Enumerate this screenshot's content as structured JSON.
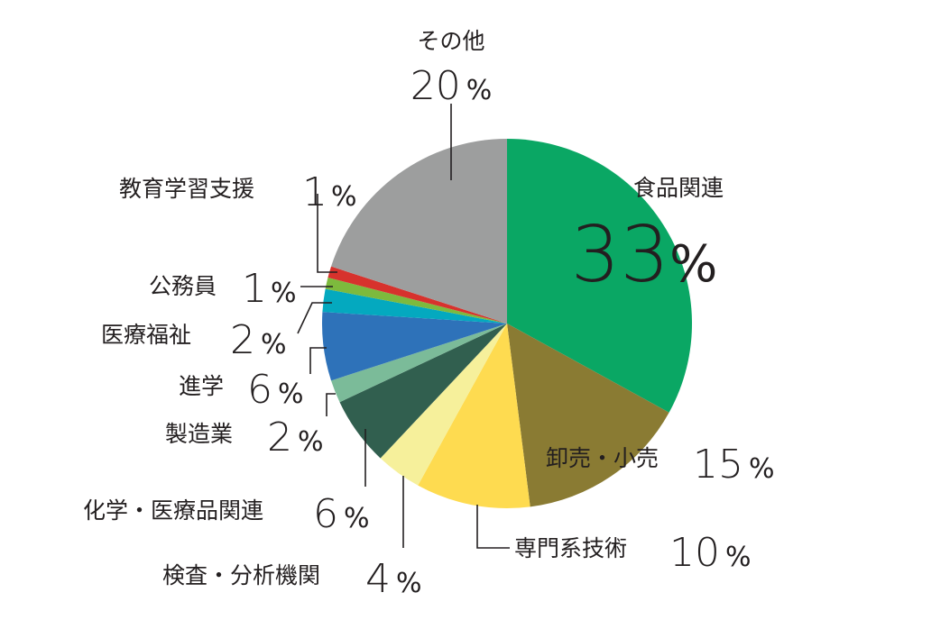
{
  "chart_data": {
    "type": "pie",
    "unit": "%",
    "slices": [
      {
        "label": "食品関連",
        "value": 33,
        "color": "#0aa764"
      },
      {
        "label": "卸売・小売",
        "value": 15,
        "color": "#8a7b33"
      },
      {
        "label": "専門系技術",
        "value": 10,
        "color": "#fedb50"
      },
      {
        "label": "検査・分析機関",
        "value": 4,
        "color": "#f6f09b"
      },
      {
        "label": "化学・医療品関連",
        "value": 6,
        "color": "#315f4f"
      },
      {
        "label": "製造業",
        "value": 2,
        "color": "#7bbb99"
      },
      {
        "label": "進学",
        "value": 6,
        "color": "#2e72b9"
      },
      {
        "label": "医療福祉",
        "value": 2,
        "color": "#04a9bf"
      },
      {
        "label": "公務員",
        "value": 1,
        "color": "#7dba3d"
      },
      {
        "label": "教育学習支援",
        "value": 1,
        "color": "#d7322d"
      },
      {
        "label": "その他",
        "value": 20,
        "color": "#9d9e9e"
      }
    ]
  }
}
